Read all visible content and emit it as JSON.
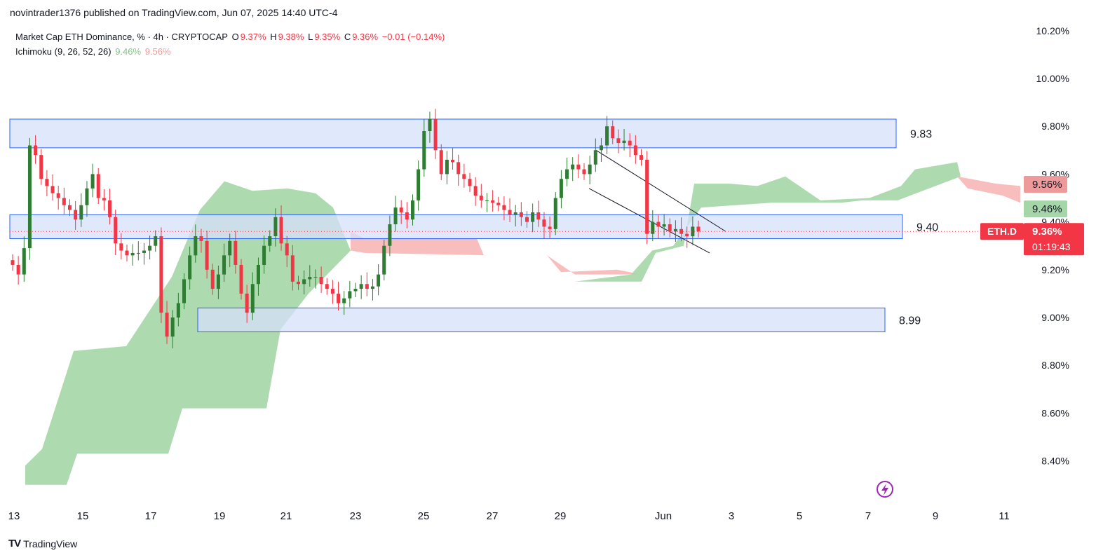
{
  "header": {
    "text": "novintrader1376 published on TradingView.com, Jun 07, 2025 14:40 UTC-4"
  },
  "legend": {
    "symbol": "Market Cap ETH Dominance, % · 4h · CRYPTOCAP",
    "open_label": "O",
    "open": "9.37%",
    "high_label": "H",
    "high": "9.38%",
    "low_label": "L",
    "low": "9.35%",
    "close_label": "C",
    "close": "9.36%",
    "change": "−0.01 (−0.14%)",
    "indicator": "Ichimoku (9, 26, 52, 26)",
    "ind_v1": "9.46%",
    "ind_v2": "9.56%"
  },
  "footer": {
    "brand": "TradingView",
    "logo_text": "TV"
  },
  "colors": {
    "up": "#26a69a",
    "up_candle": "#2e7d32",
    "down": "#f23645",
    "cloud_bull": "#a5d6a7",
    "cloud_bear": "#f8bbbb",
    "zone_fill": "#d6e0fb",
    "zone_stroke": "#2962ff"
  },
  "chart_data": {
    "type": "candlestick",
    "symbol": "ETH.D",
    "y_axis": {
      "ticks": [
        "10.20%",
        "10.00%",
        "9.80%",
        "9.60%",
        "9.40%",
        "9.20%",
        "9.00%",
        "8.80%",
        "8.60%",
        "8.40%"
      ],
      "tick_values": [
        10.2,
        10.0,
        9.8,
        9.6,
        9.4,
        9.2,
        9.0,
        8.8,
        8.6,
        8.4
      ]
    },
    "x_axis": {
      "ticks": [
        "13",
        "15",
        "17",
        "19",
        "21",
        "23",
        "25",
        "27",
        "29",
        "Jun",
        "3",
        "5",
        "7",
        "9",
        "11"
      ]
    },
    "zones": [
      {
        "label": "9.83",
        "low": 9.71,
        "high": 9.83
      },
      {
        "label": "9.40",
        "low": 9.33,
        "high": 9.43
      },
      {
        "label": "8.99",
        "low": 8.94,
        "high": 9.04
      }
    ],
    "price_label": {
      "symbol": "ETH.D",
      "value": "9.36%",
      "countdown": "01:19:43"
    },
    "indicator_labels": [
      {
        "value": "9.56%",
        "kind": "bear"
      },
      {
        "value": "9.46%",
        "kind": "bull"
      }
    ],
    "close_series": [
      9.22,
      9.18,
      9.29,
      9.72,
      9.68,
      9.58,
      9.55,
      9.52,
      9.5,
      9.47,
      9.45,
      9.41,
      9.47,
      9.54,
      9.6,
      9.5,
      9.49,
      9.42,
      9.31,
      9.28,
      9.26,
      9.27,
      9.27,
      9.28,
      9.3,
      9.34,
      9.02,
      8.92,
      9.0,
      9.06,
      9.16,
      9.26,
      9.34,
      9.32,
      9.2,
      9.12,
      9.18,
      9.26,
      9.32,
      9.22,
      9.1,
      9.02,
      9.14,
      9.22,
      9.3,
      9.34,
      9.42,
      9.31,
      9.26,
      9.15,
      9.14,
      9.16,
      9.17,
      9.17,
      9.14,
      9.12,
      9.1,
      9.06,
      9.08,
      9.11,
      9.12,
      9.14,
      9.12,
      9.13,
      9.18,
      9.3,
      9.39,
      9.46,
      9.44,
      9.41,
      9.49,
      9.62,
      9.78,
      9.83,
      9.7,
      9.6,
      9.66,
      9.65,
      9.6,
      9.58,
      9.55,
      9.51,
      9.49,
      9.49,
      9.48,
      9.47,
      9.45,
      9.43,
      9.44,
      9.42,
      9.4,
      9.44,
      9.41,
      9.38,
      9.37,
      9.5,
      9.58,
      9.62,
      9.64,
      9.62,
      9.6,
      9.64,
      9.7,
      9.72,
      9.8,
      9.75,
      9.73,
      9.74,
      9.72,
      9.68,
      9.66,
      9.35,
      9.4,
      9.38,
      9.39,
      9.36,
      9.37,
      9.35,
      9.34,
      9.38,
      9.36
    ],
    "annotations": [
      {
        "type": "descending-channel",
        "from": "May 29",
        "to": "Jun 2"
      },
      {
        "type": "icon",
        "name": "lightning",
        "x_label": "7"
      }
    ]
  }
}
